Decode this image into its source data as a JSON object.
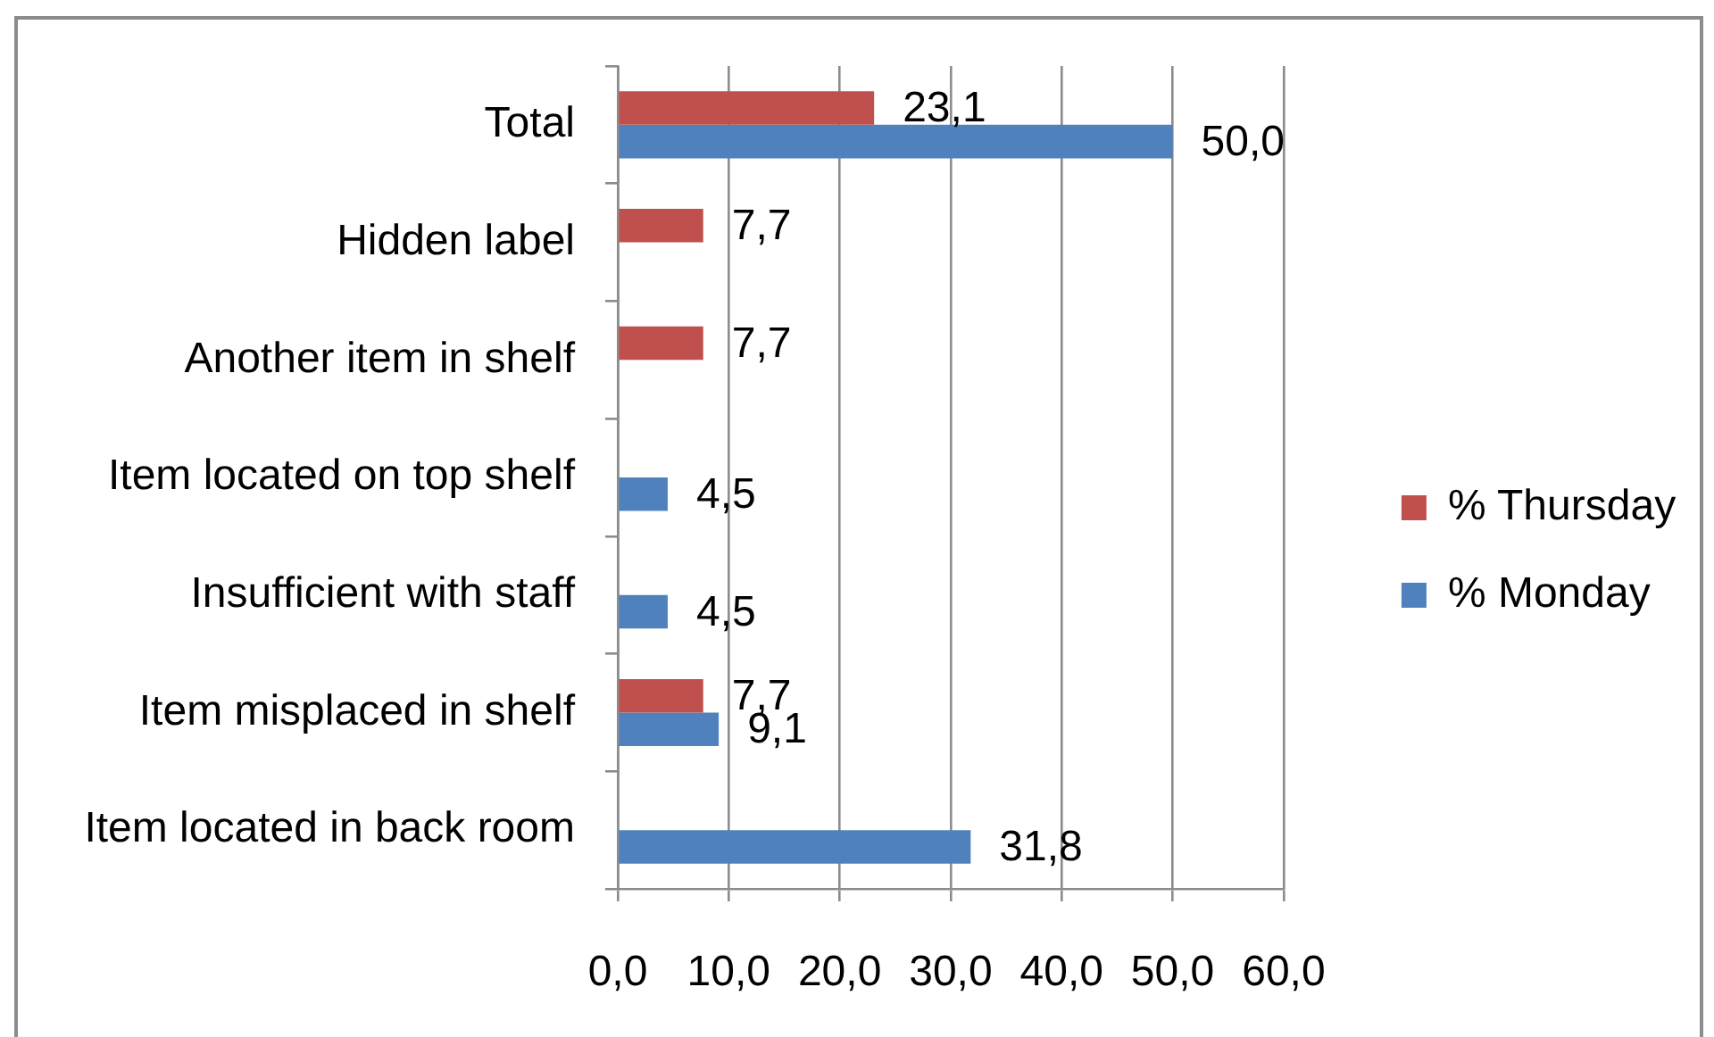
{
  "chart_data": {
    "type": "bar",
    "orientation": "horizontal",
    "categories": [
      "Total",
      "Hidden label",
      "Another item in shelf",
      "Item located on top shelf",
      "Insufficient with staff",
      "Item misplaced in shelf",
      "Item located in back room"
    ],
    "series": [
      {
        "name": "% Thursday",
        "color": "#c0504d",
        "values": [
          23.1,
          7.7,
          7.7,
          null,
          null,
          7.7,
          null
        ],
        "value_labels": [
          "23,1",
          "7,7",
          "7,7",
          null,
          null,
          "7,7",
          null
        ]
      },
      {
        "name": "% Monday",
        "color": "#4f81bd",
        "values": [
          50.0,
          null,
          null,
          4.5,
          4.5,
          9.1,
          31.8
        ],
        "value_labels": [
          "50,0",
          null,
          null,
          "4,5",
          "4,5",
          "9,1",
          "31,8"
        ]
      }
    ],
    "xlim": [
      0,
      60
    ],
    "xticks": [
      {
        "value": 0,
        "label": "0,0"
      },
      {
        "value": 10,
        "label": "10,0"
      },
      {
        "value": 20,
        "label": "20,0"
      },
      {
        "value": 30,
        "label": "30,0"
      },
      {
        "value": 40,
        "label": "40,0"
      },
      {
        "value": 50,
        "label": "50,0"
      },
      {
        "value": 60,
        "label": "60,0"
      }
    ],
    "grid": "x",
    "legend": "right"
  }
}
